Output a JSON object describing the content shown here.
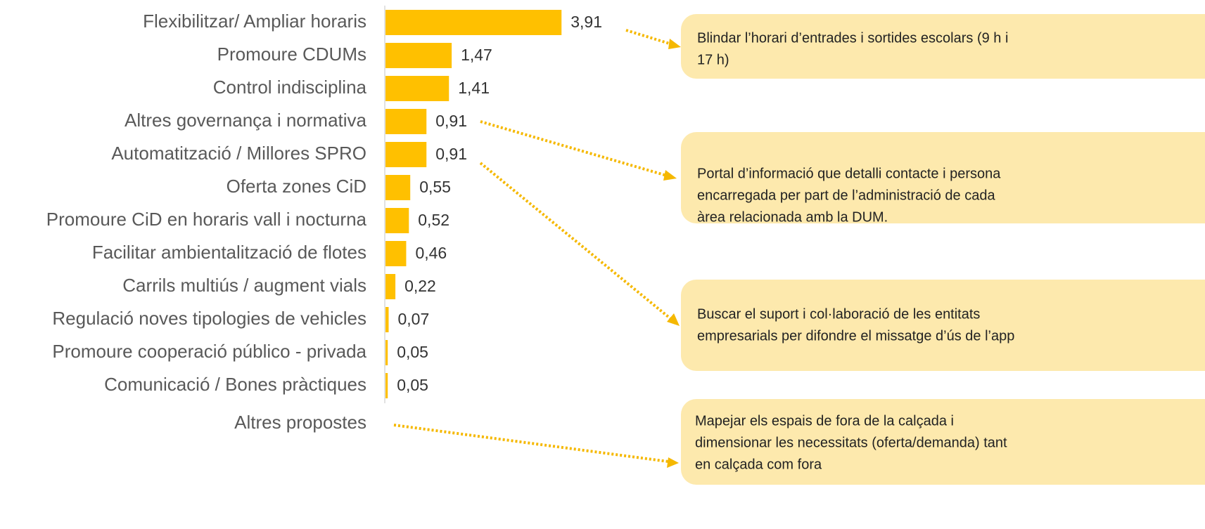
{
  "chart_data": {
    "type": "bar",
    "orientation": "horizontal",
    "categories": [
      "Flexibilitzar/ Ampliar horaris",
      "Promoure CDUMs",
      "Control indisciplina",
      "Altres governança i normativa",
      "Automatització / Millores SPRO",
      "Oferta zones CiD",
      "Promoure CiD en horaris vall i nocturna",
      "Facilitar ambientalització de flotes",
      "Carrils multiús / augment vials",
      "Regulació noves tipologies de vehicles",
      "Promoure cooperació público - privada",
      "Comunicació / Bones pràctiques"
    ],
    "values": [
      3.91,
      1.47,
      1.41,
      0.91,
      0.91,
      0.55,
      0.52,
      0.46,
      0.22,
      0.07,
      0.05,
      0.05
    ],
    "value_labels": [
      "3,91",
      "1,47",
      "1,41",
      "0,91",
      "0,91",
      "0,55",
      "0,52",
      "0,46",
      "0,22",
      "0,07",
      "0,05",
      "0,05"
    ],
    "color": "#ffc000",
    "xlim": [
      0,
      6
    ],
    "other_label": "Altres propostes",
    "annotations": [
      {
        "lines": [
          "Blindar l’horari d’entrades i sortides escolars (9 h i",
          "17 h)"
        ]
      },
      {
        "lines": [
          "Portal d’informació que detalli contacte i persona",
          "encarregada per part de l’administració de cada",
          "àrea relacionada amb la DUM."
        ]
      },
      {
        "lines": [
          "Buscar el suport i col·laboració de les entitats",
          "empresarials per difondre el missatge d’ús de l’app"
        ]
      },
      {
        "lines": [
          "Mapejar els espais de fora de la calçada i",
          "dimensionar les necessitats (oferta/demanda) tant",
          "en calçada com fora"
        ]
      }
    ]
  }
}
